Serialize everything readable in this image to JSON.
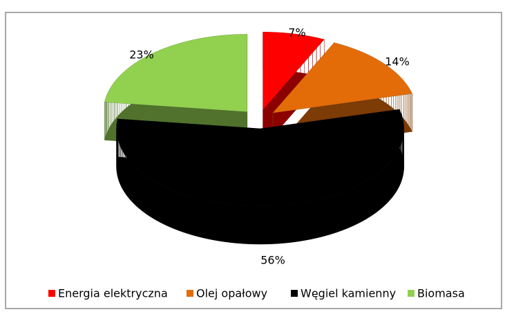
{
  "chart_data": {
    "type": "pie3d",
    "categories": [
      "Energia elektryczna",
      "Olej opałowy",
      "Węgiel kamienny",
      "Biomasa"
    ],
    "values": [
      7,
      14,
      56,
      23
    ],
    "value_labels": [
      "7%",
      "14%",
      "56%",
      "23%"
    ],
    "colors": [
      "#ff0000",
      "#e36c09",
      "#000000",
      "#92d050"
    ],
    "legend": "bottom"
  }
}
